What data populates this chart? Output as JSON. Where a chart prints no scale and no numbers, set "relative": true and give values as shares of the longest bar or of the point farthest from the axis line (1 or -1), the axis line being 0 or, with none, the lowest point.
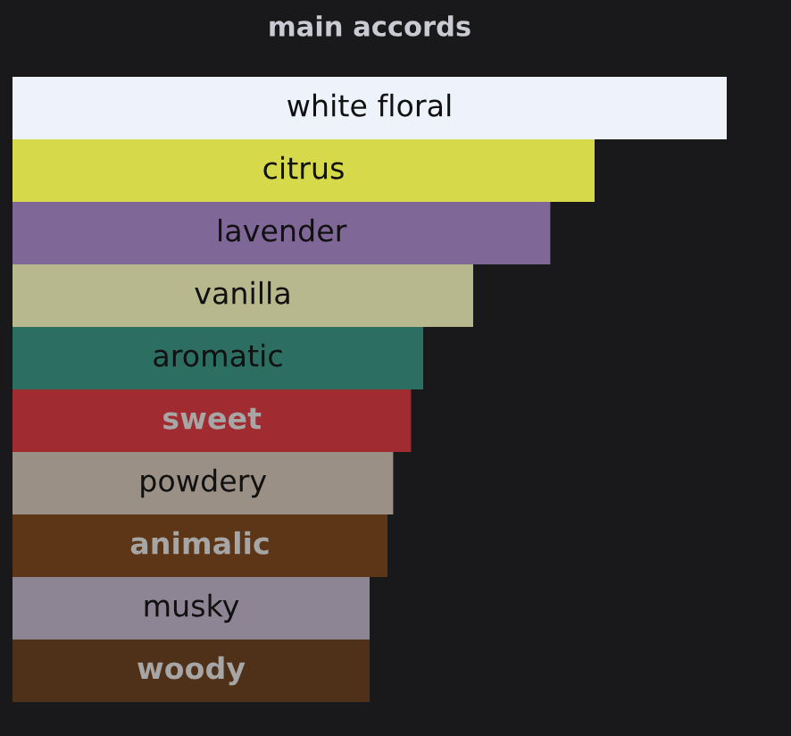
{
  "chart_data": {
    "type": "bar",
    "orientation": "horizontal",
    "relative": true,
    "title": "main accords",
    "categories": [
      "white floral",
      "citrus",
      "lavender",
      "vanilla",
      "aromatic",
      "sweet",
      "powdery",
      "animalic",
      "musky",
      "woody"
    ],
    "values": [
      1,
      0.815,
      0.753,
      0.645,
      0.575,
      0.558,
      0.533,
      0.525,
      0.5,
      0.5
    ],
    "colors": [
      "#eef2fa",
      "#d6da4a",
      "#7f6898",
      "#b8b88e",
      "#2d6e62",
      "#a02b30",
      "#9a9086",
      "#5c3616",
      "#8e8594",
      "#4e3118"
    ]
  }
}
